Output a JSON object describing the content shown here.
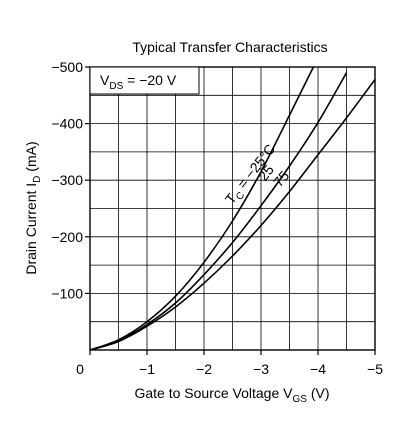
{
  "chart_data": {
    "type": "line",
    "title": "Typical Transfer Characteristics",
    "condition": {
      "label": "V",
      "sub": "DS",
      "value": " = −20 V"
    },
    "xlabel": {
      "main": "Gate to Source Voltage  V",
      "sub": "GS",
      "unit": "  (V)"
    },
    "ylabel": {
      "main": "Drain Current  I",
      "sub": "D",
      "unit": "  (mA)"
    },
    "xlim": [
      0,
      -5
    ],
    "ylim": [
      0,
      -500
    ],
    "grid": true,
    "x_ticks": [
      {
        "value": 0,
        "label": "0"
      },
      {
        "value": -1,
        "label": "−1"
      },
      {
        "value": -2,
        "label": "−2"
      },
      {
        "value": -3,
        "label": "−3"
      },
      {
        "value": -4,
        "label": "−4"
      },
      {
        "value": -5,
        "label": "−5"
      }
    ],
    "y_ticks": [
      {
        "value": -100,
        "label": "−100"
      },
      {
        "value": -200,
        "label": "−200"
      },
      {
        "value": -300,
        "label": "−300"
      },
      {
        "value": -400,
        "label": "−400"
      },
      {
        "value": -500,
        "label": "−500"
      }
    ],
    "series": [
      {
        "name": "T",
        "sub": "C",
        "suffix": " = −25°C",
        "x": [
          0,
          -0.5,
          -1,
          -1.5,
          -2,
          -2.5,
          -3,
          -3.5,
          -3.92
        ],
        "y": [
          0,
          -18,
          -50,
          -95,
          -155,
          -228,
          -315,
          -415,
          -500
        ]
      },
      {
        "name": "25",
        "x": [
          0,
          -0.5,
          -1,
          -1.5,
          -2,
          -2.5,
          -3,
          -3.5,
          -4,
          -4.5
        ],
        "y": [
          0,
          -16,
          -45,
          -83,
          -133,
          -190,
          -255,
          -325,
          -402,
          -490
        ]
      },
      {
        "name": "75",
        "x": [
          0,
          -0.5,
          -1,
          -1.5,
          -2,
          -2.5,
          -3,
          -3.5,
          -4,
          -4.5,
          -5
        ],
        "y": [
          0,
          -15,
          -42,
          -76,
          -118,
          -166,
          -220,
          -280,
          -345,
          -410,
          -478
        ]
      }
    ]
  }
}
